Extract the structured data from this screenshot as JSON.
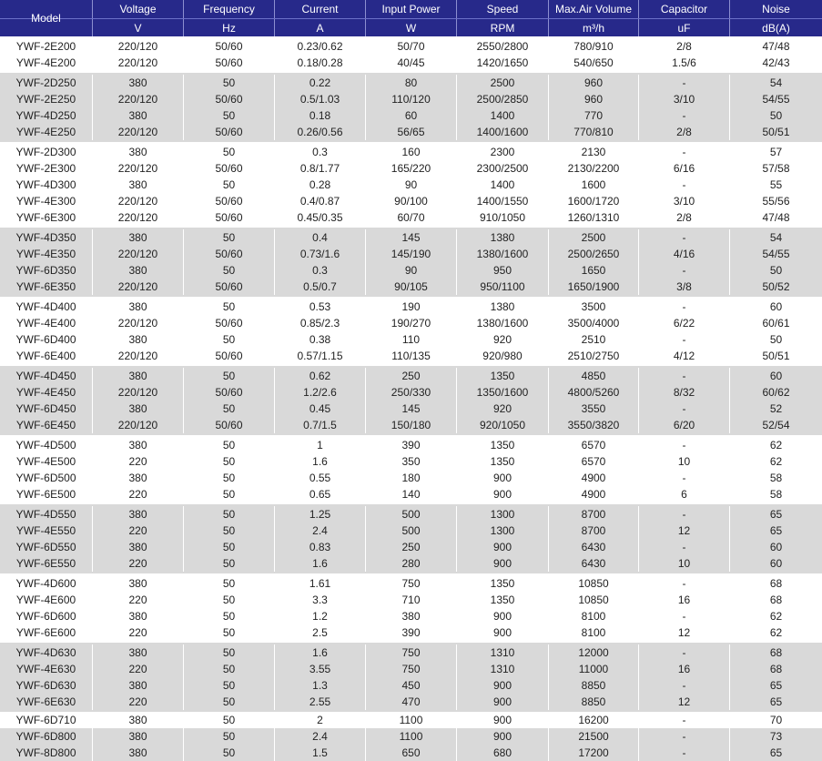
{
  "header": {
    "model": "Model",
    "columns": [
      {
        "label": "Voltage",
        "unit": "V"
      },
      {
        "label": "Frequency",
        "unit": "Hz"
      },
      {
        "label": "Current",
        "unit": "A"
      },
      {
        "label": "Input Power",
        "unit": "W"
      },
      {
        "label": "Speed",
        "unit": "RPM"
      },
      {
        "label": "Max.Air Volume",
        "unit": "m³/h"
      },
      {
        "label": "Capacitor",
        "unit": "uF"
      },
      {
        "label": "Noise",
        "unit": "dB(A)"
      }
    ]
  },
  "colors": {
    "header_bg": "#27298a",
    "gray_band": "#d9d9d9"
  },
  "groups": [
    {
      "shade": "white",
      "rows": [
        [
          "YWF-2E200",
          "220/120",
          "50/60",
          "0.23/0.62",
          "50/70",
          "2550/2800",
          "780/910",
          "2/8",
          "47/48"
        ],
        [
          "YWF-4E200",
          "220/120",
          "50/60",
          "0.18/0.28",
          "40/45",
          "1420/1650",
          "540/650",
          "1.5/6",
          "42/43"
        ]
      ]
    },
    {
      "shade": "gray",
      "rows": [
        [
          "YWF-2D250",
          "380",
          "50",
          "0.22",
          "80",
          "2500",
          "960",
          "-",
          "54"
        ],
        [
          "YWF-2E250",
          "220/120",
          "50/60",
          "0.5/1.03",
          "110/120",
          "2500/2850",
          "960",
          "3/10",
          "54/55"
        ],
        [
          "YWF-4D250",
          "380",
          "50",
          "0.18",
          "60",
          "1400",
          "770",
          "-",
          "50"
        ],
        [
          "YWF-4E250",
          "220/120",
          "50/60",
          "0.26/0.56",
          "56/65",
          "1400/1600",
          "770/810",
          "2/8",
          "50/51"
        ]
      ]
    },
    {
      "shade": "white",
      "rows": [
        [
          "YWF-2D300",
          "380",
          "50",
          "0.3",
          "160",
          "2300",
          "2130",
          "-",
          "57"
        ],
        [
          "YWF-2E300",
          "220/120",
          "50/60",
          "0.8/1.77",
          "165/220",
          "2300/2500",
          "2130/2200",
          "6/16",
          "57/58"
        ],
        [
          "YWF-4D300",
          "380",
          "50",
          "0.28",
          "90",
          "1400",
          "1600",
          "-",
          "55"
        ],
        [
          "YWF-4E300",
          "220/120",
          "50/60",
          "0.4/0.87",
          "90/100",
          "1400/1550",
          "1600/1720",
          "3/10",
          "55/56"
        ],
        [
          "YWF-6E300",
          "220/120",
          "50/60",
          "0.45/0.35",
          "60/70",
          "910/1050",
          "1260/1310",
          "2/8",
          "47/48"
        ]
      ]
    },
    {
      "shade": "gray",
      "rows": [
        [
          "YWF-4D350",
          "380",
          "50",
          "0.4",
          "145",
          "1380",
          "2500",
          "-",
          "54"
        ],
        [
          "YWF-4E350",
          "220/120",
          "50/60",
          "0.73/1.6",
          "145/190",
          "1380/1600",
          "2500/2650",
          "4/16",
          "54/55"
        ],
        [
          "YWF-6D350",
          "380",
          "50",
          "0.3",
          "90",
          "950",
          "1650",
          "-",
          "50"
        ],
        [
          "YWF-6E350",
          "220/120",
          "50/60",
          "0.5/0.7",
          "90/105",
          "950/1100",
          "1650/1900",
          "3/8",
          "50/52"
        ]
      ]
    },
    {
      "shade": "white",
      "rows": [
        [
          "YWF-4D400",
          "380",
          "50",
          "0.53",
          "190",
          "1380",
          "3500",
          "-",
          "60"
        ],
        [
          "YWF-4E400",
          "220/120",
          "50/60",
          "0.85/2.3",
          "190/270",
          "1380/1600",
          "3500/4000",
          "6/22",
          "60/61"
        ],
        [
          "YWF-6D400",
          "380",
          "50",
          "0.38",
          "110",
          "920",
          "2510",
          "-",
          "50"
        ],
        [
          "YWF-6E400",
          "220/120",
          "50/60",
          "0.57/1.15",
          "110/135",
          "920/980",
          "2510/2750",
          "4/12",
          "50/51"
        ]
      ]
    },
    {
      "shade": "gray",
      "rows": [
        [
          "YWF-4D450",
          "380",
          "50",
          "0.62",
          "250",
          "1350",
          "4850",
          "-",
          "60"
        ],
        [
          "YWF-4E450",
          "220/120",
          "50/60",
          "1.2/2.6",
          "250/330",
          "1350/1600",
          "4800/5260",
          "8/32",
          "60/62"
        ],
        [
          "YWF-6D450",
          "380",
          "50",
          "0.45",
          "145",
          "920",
          "3550",
          "-",
          "52"
        ],
        [
          "YWF-6E450",
          "220/120",
          "50/60",
          "0.7/1.5",
          "150/180",
          "920/1050",
          "3550/3820",
          "6/20",
          "52/54"
        ]
      ]
    },
    {
      "shade": "white",
      "rows": [
        [
          "YWF-4D500",
          "380",
          "50",
          "1",
          "390",
          "1350",
          "6570",
          "-",
          "62"
        ],
        [
          "YWF-4E500",
          "220",
          "50",
          "1.6",
          "350",
          "1350",
          "6570",
          "10",
          "62"
        ],
        [
          "YWF-6D500",
          "380",
          "50",
          "0.55",
          "180",
          "900",
          "4900",
          "-",
          "58"
        ],
        [
          "YWF-6E500",
          "220",
          "50",
          "0.65",
          "140",
          "900",
          "4900",
          "6",
          "58"
        ]
      ]
    },
    {
      "shade": "gray",
      "rows": [
        [
          "YWF-4D550",
          "380",
          "50",
          "1.25",
          "500",
          "1300",
          "8700",
          "-",
          "65"
        ],
        [
          "YWF-4E550",
          "220",
          "50",
          "2.4",
          "500",
          "1300",
          "8700",
          "12",
          "65"
        ],
        [
          "YWF-6D550",
          "380",
          "50",
          "0.83",
          "250",
          "900",
          "6430",
          "-",
          "60"
        ],
        [
          "YWF-6E550",
          "220",
          "50",
          "1.6",
          "280",
          "900",
          "6430",
          "10",
          "60"
        ]
      ]
    },
    {
      "shade": "white",
      "rows": [
        [
          "YWF-4D600",
          "380",
          "50",
          "1.61",
          "750",
          "1350",
          "10850",
          "-",
          "68"
        ],
        [
          "YWF-4E600",
          "220",
          "50",
          "3.3",
          "710",
          "1350",
          "10850",
          "16",
          "68"
        ],
        [
          "YWF-6D600",
          "380",
          "50",
          "1.2",
          "380",
          "900",
          "8100",
          "-",
          "62"
        ],
        [
          "YWF-6E600",
          "220",
          "50",
          "2.5",
          "390",
          "900",
          "8100",
          "12",
          "62"
        ]
      ]
    },
    {
      "shade": "gray",
      "rows": [
        [
          "YWF-4D630",
          "380",
          "50",
          "1.6",
          "750",
          "1310",
          "12000",
          "-",
          "68"
        ],
        [
          "YWF-4E630",
          "220",
          "50",
          "3.55",
          "750",
          "1310",
          "11000",
          "16",
          "68"
        ],
        [
          "YWF-6D630",
          "380",
          "50",
          "1.3",
          "450",
          "900",
          "8850",
          "-",
          "65"
        ],
        [
          "YWF-6E630",
          "220",
          "50",
          "2.55",
          "470",
          "900",
          "8850",
          "12",
          "65"
        ]
      ]
    },
    {
      "shade": "white",
      "rows": [
        [
          "YWF-6D710",
          "380",
          "50",
          "2",
          "1100",
          "900",
          "16200",
          "-",
          "70"
        ]
      ]
    },
    {
      "shade": "gray",
      "rows": [
        [
          "YWF-6D800",
          "380",
          "50",
          "2.4",
          "1100",
          "900",
          "21500",
          "-",
          "73"
        ],
        [
          "YWF-8D800",
          "380",
          "50",
          "1.5",
          "650",
          "680",
          "17200",
          "-",
          "65"
        ]
      ]
    }
  ]
}
